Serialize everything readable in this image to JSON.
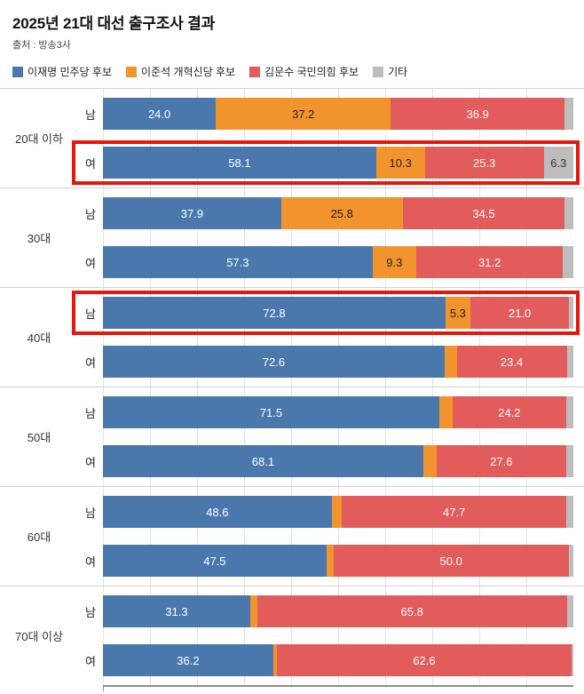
{
  "header": {
    "title": "2025년 21대 대선 출구조사 결과",
    "source": "출처 : 방송3사"
  },
  "legend": [
    {
      "label": "이재명 민주당 후보",
      "color": "#4a78ad"
    },
    {
      "label": "이준석 개혁신당 후보",
      "color": "#f2942d"
    },
    {
      "label": "김문수 국민의힘 후보",
      "color": "#e25c5c"
    },
    {
      "label": "기타",
      "color": "#bdbdbd"
    }
  ],
  "colors": {
    "highlight_box": "#e8150b",
    "label_on_blue": "#ffffff",
    "label_on_orange": "#222222",
    "label_on_red": "#ffffff",
    "label_on_gray": "#333333"
  },
  "chart_data": {
    "type": "bar",
    "orientation": "horizontal",
    "stacked": true,
    "title": "2025년 21대 대선 출구조사 결과",
    "series_names": [
      "이재명 민주당 후보",
      "이준석 개혁신당 후보",
      "김문수 국민의힘 후보",
      "기타"
    ],
    "xlim": [
      0,
      100
    ],
    "grid": true,
    "legend_position": "top",
    "groups": [
      {
        "age": "20대 이하",
        "rows": [
          {
            "gender": "남",
            "highlight": false,
            "values": [
              24.0,
              37.2,
              36.9,
              1.9
            ],
            "labels": [
              "24.0",
              "37.2",
              "36.9",
              ""
            ]
          },
          {
            "gender": "여",
            "highlight": true,
            "values": [
              58.1,
              10.3,
              25.3,
              6.3
            ],
            "labels": [
              "58.1",
              "10.3",
              "25.3",
              "6.3"
            ]
          }
        ]
      },
      {
        "age": "30대",
        "rows": [
          {
            "gender": "남",
            "highlight": false,
            "values": [
              37.9,
              25.8,
              34.5,
              1.8
            ],
            "labels": [
              "37.9",
              "25.8",
              "34.5",
              ""
            ]
          },
          {
            "gender": "여",
            "highlight": false,
            "values": [
              57.3,
              9.3,
              31.2,
              2.2
            ],
            "labels": [
              "57.3",
              "9.3",
              "31.2",
              ""
            ]
          }
        ]
      },
      {
        "age": "40대",
        "rows": [
          {
            "gender": "남",
            "highlight": true,
            "values": [
              72.8,
              5.3,
              21.0,
              0.9
            ],
            "labels": [
              "72.8",
              "5.3",
              "21.0",
              ""
            ]
          },
          {
            "gender": "여",
            "highlight": false,
            "values": [
              72.6,
              2.6,
              23.4,
              1.4
            ],
            "labels": [
              "72.6",
              "",
              "23.4",
              ""
            ]
          }
        ]
      },
      {
        "age": "50대",
        "rows": [
          {
            "gender": "남",
            "highlight": false,
            "values": [
              71.5,
              2.8,
              24.2,
              1.5
            ],
            "labels": [
              "71.5",
              "",
              "24.2",
              ""
            ]
          },
          {
            "gender": "여",
            "highlight": false,
            "values": [
              68.1,
              2.8,
              27.6,
              1.5
            ],
            "labels": [
              "68.1",
              "",
              "27.6",
              ""
            ]
          }
        ]
      },
      {
        "age": "60대",
        "rows": [
          {
            "gender": "남",
            "highlight": false,
            "values": [
              48.6,
              2.2,
              47.7,
              1.5
            ],
            "labels": [
              "48.6",
              "",
              "47.7",
              ""
            ]
          },
          {
            "gender": "여",
            "highlight": false,
            "values": [
              47.5,
              1.5,
              50.0,
              1.0
            ],
            "labels": [
              "47.5",
              "",
              "50.0",
              ""
            ]
          }
        ]
      },
      {
        "age": "70대 이상",
        "rows": [
          {
            "gender": "남",
            "highlight": false,
            "values": [
              31.3,
              1.5,
              65.8,
              1.4
            ],
            "labels": [
              "31.3",
              "",
              "65.8",
              ""
            ]
          },
          {
            "gender": "여",
            "highlight": false,
            "values": [
              36.2,
              0.8,
              62.6,
              0.4
            ],
            "labels": [
              "36.2",
              "",
              "62.6",
              ""
            ]
          }
        ]
      }
    ]
  }
}
